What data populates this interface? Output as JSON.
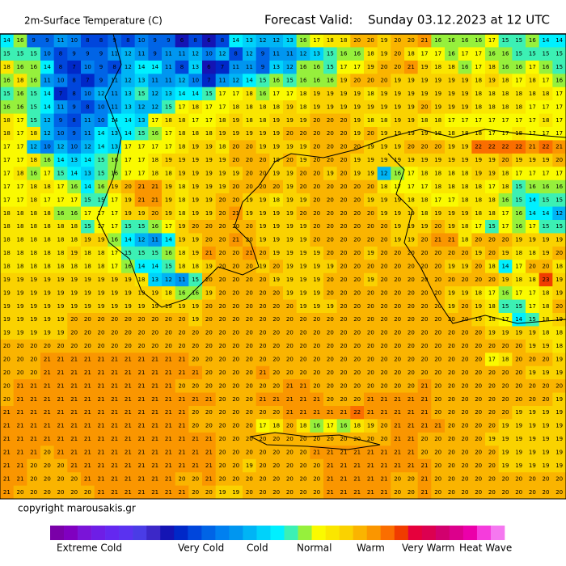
{
  "header": {
    "title": "2m-Surface Temperature (C)",
    "forecast_label": "Forecast Valid:",
    "forecast_time": "Sunday 03.12.2023 at 12 UTC"
  },
  "map": {
    "grid": [
      [
        14,
        16,
        9,
        9,
        11,
        10,
        8,
        8,
        9,
        8,
        10,
        9,
        9,
        6,
        8,
        6,
        8,
        14,
        13,
        12,
        12,
        13,
        16,
        17,
        18,
        18,
        20,
        20,
        19,
        20,
        20,
        21,
        16,
        16,
        16,
        16,
        17,
        15,
        15,
        16,
        14,
        14
      ],
      [
        15,
        15,
        15,
        10,
        8,
        9,
        9,
        9,
        11,
        12,
        11,
        9,
        11,
        11,
        12,
        10,
        12,
        8,
        12,
        9,
        11,
        11,
        12,
        13,
        15,
        16,
        16,
        18,
        19,
        20,
        18,
        17,
        17,
        16,
        17,
        17,
        16,
        16,
        15,
        15,
        15,
        15
      ],
      [
        18,
        16,
        16,
        14,
        8,
        7,
        10,
        9,
        8,
        12,
        14,
        14,
        11,
        8,
        13,
        6,
        7,
        11,
        11,
        9,
        13,
        12,
        16,
        16,
        15,
        17,
        17,
        19,
        20,
        20,
        21,
        19,
        18,
        18,
        16,
        17,
        18,
        16,
        16,
        17,
        16,
        15
      ],
      [
        16,
        18,
        16,
        11,
        10,
        8,
        7,
        9,
        11,
        12,
        13,
        11,
        11,
        12,
        10,
        7,
        11,
        12,
        14,
        15,
        16,
        15,
        16,
        16,
        16,
        19,
        20,
        20,
        20,
        19,
        19,
        19,
        19,
        19,
        19,
        18,
        19,
        18,
        17,
        18,
        17,
        16
      ],
      [
        15,
        16,
        15,
        14,
        7,
        8,
        10,
        12,
        11,
        13,
        15,
        12,
        13,
        14,
        14,
        15,
        17,
        17,
        18,
        16,
        17,
        17,
        18,
        19,
        19,
        19,
        19,
        18,
        19,
        19,
        19,
        19,
        19,
        19,
        19,
        18,
        18,
        18,
        18,
        18,
        18,
        17
      ],
      [
        16,
        16,
        15,
        14,
        11,
        9,
        8,
        10,
        11,
        13,
        12,
        12,
        15,
        17,
        18,
        17,
        17,
        18,
        18,
        18,
        18,
        19,
        18,
        19,
        19,
        19,
        19,
        19,
        19,
        19,
        19,
        20,
        19,
        19,
        19,
        18,
        18,
        18,
        18,
        17,
        17,
        17
      ],
      [
        18,
        17,
        15,
        12,
        9,
        8,
        11,
        10,
        14,
        14,
        13,
        17,
        18,
        18,
        17,
        17,
        18,
        19,
        18,
        18,
        19,
        19,
        19,
        20,
        20,
        20,
        19,
        18,
        18,
        19,
        19,
        18,
        18,
        17,
        17,
        17,
        17,
        17,
        17,
        17,
        18,
        17
      ],
      [
        18,
        17,
        18,
        12,
        10,
        9,
        11,
        14,
        13,
        14,
        15,
        16,
        17,
        18,
        18,
        18,
        19,
        19,
        19,
        19,
        19,
        20,
        20,
        20,
        20,
        20,
        19,
        20,
        19,
        19,
        19,
        19,
        18,
        18,
        18,
        18,
        17,
        17,
        18,
        17,
        17,
        17
      ],
      [
        17,
        17,
        12,
        10,
        12,
        10,
        12,
        14,
        13,
        17,
        17,
        17,
        17,
        18,
        19,
        19,
        18,
        20,
        20,
        19,
        19,
        19,
        19,
        20,
        20,
        20,
        20,
        19,
        19,
        19,
        20,
        20,
        20,
        19,
        19,
        22,
        22,
        22,
        22,
        21,
        22,
        21
      ],
      [
        17,
        17,
        18,
        16,
        14,
        13,
        14,
        15,
        16,
        17,
        17,
        18,
        19,
        19,
        19,
        19,
        19,
        20,
        20,
        20,
        19,
        20,
        19,
        20,
        20,
        20,
        19,
        19,
        19,
        19,
        19,
        19,
        19,
        19,
        19,
        19,
        19,
        20,
        19,
        19,
        19,
        20
      ],
      [
        17,
        18,
        16,
        17,
        15,
        14,
        13,
        15,
        16,
        17,
        17,
        18,
        18,
        19,
        19,
        19,
        19,
        19,
        20,
        20,
        19,
        19,
        20,
        20,
        19,
        20,
        19,
        19,
        12,
        16,
        17,
        18,
        18,
        18,
        18,
        19,
        19,
        18,
        17,
        17,
        17,
        17
      ],
      [
        17,
        17,
        18,
        18,
        17,
        16,
        14,
        16,
        19,
        20,
        21,
        21,
        19,
        18,
        19,
        19,
        19,
        20,
        20,
        20,
        20,
        19,
        20,
        20,
        20,
        20,
        20,
        20,
        18,
        17,
        17,
        17,
        18,
        18,
        18,
        18,
        17,
        18,
        15,
        16,
        16,
        16
      ],
      [
        17,
        17,
        18,
        17,
        17,
        17,
        15,
        15,
        17,
        19,
        21,
        21,
        19,
        18,
        19,
        19,
        20,
        20,
        19,
        19,
        18,
        19,
        19,
        20,
        20,
        20,
        20,
        19,
        19,
        19,
        18,
        18,
        17,
        17,
        18,
        18,
        18,
        16,
        15,
        14,
        15,
        15
      ],
      [
        18,
        18,
        18,
        18,
        16,
        16,
        17,
        17,
        17,
        19,
        19,
        20,
        19,
        18,
        19,
        19,
        20,
        21,
        19,
        19,
        19,
        19,
        20,
        20,
        20,
        20,
        20,
        20,
        19,
        19,
        19,
        18,
        19,
        19,
        19,
        18,
        18,
        17,
        16,
        14,
        14,
        12
      ],
      [
        18,
        18,
        18,
        18,
        18,
        18,
        15,
        17,
        17,
        15,
        15,
        16,
        17,
        19,
        20,
        20,
        20,
        20,
        20,
        19,
        19,
        19,
        19,
        20,
        20,
        20,
        20,
        20,
        20,
        19,
        19,
        19,
        20,
        19,
        18,
        17,
        15,
        17,
        16,
        17,
        15,
        15
      ],
      [
        18,
        18,
        18,
        18,
        18,
        18,
        19,
        19,
        16,
        14,
        12,
        11,
        14,
        19,
        19,
        20,
        20,
        21,
        20,
        19,
        19,
        19,
        19,
        20,
        20,
        20,
        20,
        20,
        20,
        19,
        19,
        20,
        21,
        21,
        18,
        20,
        20,
        20,
        19,
        19,
        19,
        19
      ],
      [
        18,
        18,
        18,
        18,
        18,
        19,
        18,
        18,
        17,
        15,
        15,
        15,
        16,
        18,
        19,
        21,
        20,
        20,
        21,
        20,
        19,
        19,
        19,
        19,
        20,
        20,
        20,
        19,
        20,
        20,
        20,
        20,
        20,
        20,
        20,
        19,
        20,
        19,
        18,
        18,
        19,
        20
      ],
      [
        18,
        18,
        18,
        18,
        18,
        18,
        18,
        18,
        17,
        16,
        14,
        14,
        15,
        18,
        18,
        19,
        20,
        20,
        20,
        19,
        20,
        19,
        19,
        19,
        19,
        20,
        20,
        20,
        20,
        20,
        20,
        20,
        20,
        19,
        19,
        20,
        18,
        14,
        17,
        20,
        20,
        18
      ],
      [
        19,
        19,
        19,
        19,
        19,
        19,
        19,
        19,
        19,
        19,
        18,
        13,
        12,
        11,
        15,
        20,
        20,
        20,
        20,
        20,
        19,
        19,
        19,
        19,
        20,
        20,
        20,
        19,
        20,
        20,
        20,
        20,
        20,
        20,
        20,
        20,
        20,
        19,
        18,
        18,
        23,
        19
      ],
      [
        19,
        19,
        19,
        19,
        19,
        19,
        19,
        19,
        19,
        19,
        19,
        19,
        18,
        16,
        16,
        19,
        20,
        20,
        20,
        20,
        20,
        19,
        19,
        19,
        20,
        20,
        20,
        20,
        20,
        20,
        20,
        20,
        20,
        19,
        19,
        18,
        17,
        16,
        17,
        17,
        18,
        19
      ],
      [
        19,
        19,
        19,
        19,
        19,
        19,
        19,
        19,
        19,
        19,
        19,
        19,
        19,
        19,
        19,
        20,
        20,
        20,
        20,
        20,
        20,
        20,
        19,
        19,
        19,
        20,
        20,
        20,
        20,
        20,
        20,
        20,
        20,
        19,
        20,
        19,
        18,
        15,
        15,
        17,
        18,
        20
      ],
      [
        19,
        19,
        19,
        19,
        19,
        20,
        20,
        20,
        20,
        20,
        20,
        20,
        20,
        20,
        19,
        20,
        20,
        20,
        20,
        20,
        20,
        20,
        20,
        20,
        20,
        20,
        20,
        20,
        20,
        20,
        20,
        20,
        20,
        20,
        20,
        19,
        18,
        17,
        14,
        15,
        18,
        19
      ],
      [
        19,
        19,
        19,
        19,
        19,
        20,
        20,
        20,
        20,
        20,
        20,
        20,
        20,
        20,
        20,
        20,
        20,
        20,
        20,
        20,
        20,
        20,
        20,
        20,
        20,
        20,
        20,
        20,
        20,
        20,
        20,
        20,
        20,
        20,
        20,
        20,
        19,
        19,
        19,
        19,
        18,
        18
      ],
      [
        20,
        20,
        20,
        20,
        20,
        20,
        20,
        20,
        20,
        20,
        20,
        20,
        20,
        20,
        20,
        20,
        20,
        20,
        20,
        20,
        20,
        20,
        20,
        20,
        20,
        20,
        20,
        20,
        20,
        20,
        20,
        20,
        20,
        20,
        20,
        20,
        20,
        20,
        20,
        19,
        19,
        18
      ],
      [
        20,
        20,
        20,
        21,
        21,
        21,
        21,
        21,
        21,
        21,
        21,
        21,
        21,
        21,
        20,
        20,
        20,
        20,
        20,
        20,
        20,
        20,
        20,
        20,
        20,
        20,
        20,
        20,
        20,
        20,
        20,
        20,
        20,
        20,
        20,
        20,
        17,
        18,
        20,
        20,
        20,
        19
      ],
      [
        20,
        20,
        20,
        21,
        21,
        21,
        21,
        21,
        21,
        21,
        21,
        21,
        21,
        21,
        21,
        20,
        20,
        20,
        20,
        21,
        20,
        20,
        20,
        20,
        20,
        20,
        20,
        20,
        20,
        20,
        20,
        20,
        20,
        20,
        20,
        20,
        20,
        20,
        20,
        19,
        19,
        19
      ],
      [
        20,
        21,
        21,
        21,
        21,
        21,
        21,
        21,
        21,
        21,
        21,
        21,
        21,
        20,
        20,
        20,
        20,
        20,
        20,
        20,
        20,
        21,
        21,
        20,
        20,
        20,
        20,
        20,
        20,
        20,
        20,
        21,
        20,
        20,
        20,
        20,
        20,
        20,
        20,
        20,
        20,
        20
      ],
      [
        20,
        21,
        21,
        21,
        21,
        21,
        21,
        21,
        21,
        21,
        21,
        21,
        21,
        21,
        21,
        21,
        20,
        20,
        20,
        21,
        21,
        21,
        21,
        21,
        20,
        20,
        20,
        21,
        21,
        21,
        21,
        21,
        20,
        20,
        20,
        20,
        20,
        20,
        20,
        20,
        20,
        19
      ],
      [
        21,
        21,
        21,
        21,
        21,
        21,
        21,
        21,
        21,
        21,
        21,
        21,
        21,
        21,
        20,
        20,
        20,
        20,
        20,
        20,
        20,
        21,
        21,
        21,
        21,
        21,
        22,
        21,
        21,
        21,
        21,
        21,
        20,
        20,
        20,
        20,
        20,
        20,
        19,
        19,
        19,
        19
      ],
      [
        21,
        21,
        21,
        21,
        21,
        21,
        21,
        21,
        21,
        21,
        21,
        21,
        21,
        21,
        20,
        20,
        20,
        20,
        20,
        17,
        18,
        20,
        18,
        16,
        17,
        16,
        18,
        19,
        20,
        21,
        21,
        21,
        21,
        20,
        20,
        20,
        20,
        19,
        19,
        19,
        19,
        19
      ],
      [
        21,
        21,
        21,
        21,
        21,
        21,
        21,
        21,
        21,
        21,
        21,
        21,
        21,
        21,
        21,
        21,
        20,
        20,
        20,
        20,
        20,
        20,
        20,
        20,
        20,
        20,
        20,
        20,
        20,
        21,
        21,
        20,
        20,
        20,
        20,
        20,
        19,
        19,
        19,
        19,
        19,
        19
      ],
      [
        21,
        21,
        21,
        20,
        21,
        21,
        21,
        21,
        21,
        21,
        21,
        21,
        21,
        21,
        21,
        21,
        20,
        20,
        20,
        20,
        20,
        20,
        20,
        21,
        21,
        21,
        21,
        21,
        21,
        21,
        21,
        20,
        20,
        20,
        20,
        20,
        20,
        19,
        19,
        19,
        19,
        19
      ],
      [
        21,
        21,
        20,
        20,
        20,
        21,
        21,
        21,
        21,
        21,
        21,
        21,
        21,
        21,
        21,
        21,
        20,
        20,
        19,
        20,
        20,
        20,
        20,
        20,
        21,
        21,
        21,
        21,
        21,
        21,
        21,
        21,
        20,
        20,
        20,
        20,
        20,
        19,
        19,
        19,
        19,
        19
      ],
      [
        21,
        21,
        20,
        20,
        20,
        20,
        21,
        21,
        21,
        21,
        21,
        21,
        21,
        20,
        20,
        21,
        20,
        20,
        20,
        20,
        20,
        20,
        20,
        20,
        21,
        21,
        21,
        21,
        21,
        20,
        20,
        21,
        20,
        20,
        20,
        20,
        20,
        20,
        20,
        20,
        20,
        20
      ],
      [
        21,
        20,
        20,
        20,
        20,
        20,
        20,
        21,
        21,
        21,
        21,
        21,
        21,
        21,
        20,
        20,
        19,
        19,
        20,
        20,
        20,
        20,
        20,
        20,
        21,
        21,
        21,
        21,
        21,
        20,
        20,
        21,
        20,
        20,
        20,
        20,
        20,
        20,
        20,
        20,
        20,
        20
      ]
    ]
  },
  "footer": {
    "copyright": "copyright marousakis.gr"
  },
  "legend": {
    "colors": [
      "#7a00a8",
      "#8000c0",
      "#7a14d8",
      "#6e1ee6",
      "#6428f0",
      "#5a32f0",
      "#4a3ce6",
      "#3c28c8",
      "#1414b4",
      "#0028c8",
      "#0046dc",
      "#0064e6",
      "#0080f0",
      "#0096f0",
      "#00b4f5",
      "#00d2fa",
      "#00f0ff",
      "#3cf0b4",
      "#96f03c",
      "#fafa00",
      "#fae600",
      "#fad200",
      "#fab400",
      "#fa9600",
      "#fa6e00",
      "#f03c00",
      "#e6003c",
      "#dc0050",
      "#d2006e",
      "#dc008c",
      "#eb00aa",
      "#f53cdc",
      "#f578f0"
    ],
    "labels": [
      "Extreme Cold",
      "Very Cold",
      "Cold",
      "Normal",
      "Warm",
      "Very Warm",
      "Heat Wave"
    ]
  }
}
